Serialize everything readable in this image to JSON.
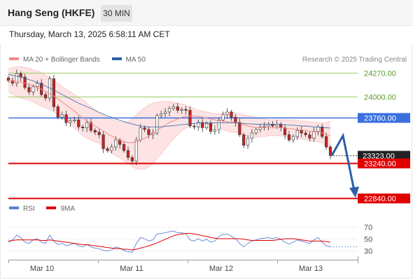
{
  "header": {
    "title": "Hang Seng (HKFE)",
    "timeframe": "30 MIN",
    "datetime": "Thursday, March 13, 2025 6:58:11 AM CET"
  },
  "legend": {
    "items": [
      {
        "label": "MA 20 + Bollinger Bands",
        "color": "#f08b8b"
      },
      {
        "label": "MA 50",
        "color": "#2c5fa8"
      }
    ],
    "credit": "Research © 2025 Trading Central"
  },
  "rsi_legend": {
    "items": [
      {
        "label": "RSI",
        "color": "#5c7fd6"
      },
      {
        "label": "9MA",
        "color": "#e00000"
      }
    ]
  },
  "colors": {
    "green_level": "#9acd62",
    "blue_level": "#3a6fe0",
    "red_level": "#e00000",
    "arrow": "#2c5fa8",
    "bb_fill": "#fde3e3",
    "candle_up": "#ffffff",
    "candle_down": "#cc2222"
  },
  "chart_data": [
    {
      "type": "candlestick",
      "title": "",
      "x_ticks": [
        "Mar 10",
        "Mar 11",
        "Mar 12",
        "Mar 13"
      ],
      "ylim": [
        22780,
        24300
      ],
      "levels": [
        {
          "label": "24270.00",
          "value": 24270,
          "kind": "resistance",
          "color": "#9acd62"
        },
        {
          "label": "24000.00",
          "value": 24000,
          "kind": "resistance",
          "color": "#9acd62"
        },
        {
          "label": "23760.00",
          "value": 23760,
          "kind": "pivot",
          "color": "#3a6fe0"
        },
        {
          "label": "23323.00",
          "value": 23323,
          "kind": "last",
          "color": "#222222"
        },
        {
          "label": "23240.00",
          "value": 23240,
          "kind": "support",
          "color": "#e00000"
        },
        {
          "label": "22840.00",
          "value": 22840,
          "kind": "support",
          "color": "#e00000"
        }
      ],
      "closes": [
        24180,
        24150,
        24260,
        24220,
        24100,
        24050,
        24110,
        24150,
        24020,
        23980,
        24200,
        23880,
        23760,
        23790,
        23700,
        23720,
        23730,
        23650,
        23640,
        23700,
        23610,
        23590,
        23560,
        23400,
        23380,
        23420,
        23500,
        23450,
        23380,
        23300,
        23260,
        23500,
        23640,
        23620,
        23560,
        23580,
        23780,
        23800,
        23820,
        23860,
        23880,
        23840,
        23850,
        23840,
        23660,
        23650,
        23700,
        23640,
        23690,
        23600,
        23620,
        23730,
        23790,
        23820,
        23760,
        23700,
        23560,
        23440,
        23520,
        23580,
        23620,
        23650,
        23660,
        23680,
        23660,
        23680,
        23640,
        23560,
        23500,
        23540,
        23610,
        23580,
        23560,
        23520,
        23600,
        23650,
        23540,
        23420,
        23323
      ],
      "ma20": [
        24180,
        24175,
        24170,
        24160,
        24150,
        24135,
        24120,
        24100,
        24080,
        24055,
        24030,
        24000,
        23970,
        23935,
        23900,
        23865,
        23830,
        23790,
        23755,
        23720,
        23690,
        23660,
        23630,
        23600,
        23570,
        23545,
        23520,
        23500,
        23480,
        23470,
        23470,
        23480,
        23500,
        23520,
        23545,
        23575,
        23610,
        23640,
        23670,
        23700,
        23720,
        23740,
        23760,
        23770,
        23775,
        23775,
        23770,
        23760,
        23750,
        23740,
        23730,
        23720,
        23715,
        23710,
        23705,
        23700,
        23690,
        23675,
        23660,
        23650,
        23645,
        23645,
        23640,
        23640,
        23640,
        23640,
        23640,
        23635,
        23630,
        23625,
        23620,
        23615,
        23610,
        23600,
        23595,
        23590,
        23580,
        23565,
        23545
      ],
      "bb_upper": [
        24310,
        24330,
        24340,
        24340,
        24330,
        24320,
        24300,
        24290,
        24270,
        24240,
        24210,
        24180,
        24150,
        24110,
        24080,
        24050,
        24020,
        23990,
        23960,
        23920,
        23880,
        23840,
        23800,
        23780,
        23760,
        23740,
        23720,
        23700,
        23700,
        23710,
        23740,
        23790,
        23830,
        23870,
        23900,
        23920,
        23930,
        23940,
        23940,
        23940,
        23930,
        23920,
        23910,
        23900,
        23880,
        23860,
        23840,
        23830,
        23820,
        23810,
        23800,
        23800,
        23810,
        23820,
        23820,
        23810,
        23800,
        23790,
        23780,
        23770,
        23760,
        23750,
        23740,
        23730,
        23730,
        23730,
        23730,
        23730,
        23730,
        23730,
        23720,
        23720,
        23715,
        23710,
        23705,
        23700,
        23695,
        23700,
        23710
      ],
      "bb_lower": [
        24050,
        24020,
        24000,
        23980,
        23970,
        23950,
        23940,
        23910,
        23890,
        23870,
        23850,
        23820,
        23790,
        23760,
        23720,
        23680,
        23640,
        23590,
        23550,
        23520,
        23500,
        23480,
        23460,
        23420,
        23380,
        23350,
        23320,
        23300,
        23260,
        23230,
        23200,
        23170,
        23170,
        23170,
        23190,
        23230,
        23290,
        23340,
        23400,
        23460,
        23510,
        23560,
        23610,
        23640,
        23670,
        23690,
        23700,
        23690,
        23680,
        23670,
        23660,
        23640,
        23620,
        23600,
        23590,
        23590,
        23580,
        23560,
        23540,
        23530,
        23530,
        23540,
        23540,
        23550,
        23550,
        23550,
        23550,
        23540,
        23530,
        23520,
        23520,
        23510,
        23505,
        23490,
        23485,
        23480,
        23465,
        23430,
        23380
      ],
      "ma50": [
        24250,
        24240,
        24230,
        24220,
        24205,
        24190,
        24175,
        24155,
        24135,
        24115,
        24095,
        24070,
        24045,
        24020,
        23995,
        23970,
        23945,
        23920,
        23900,
        23880,
        23860,
        23840,
        23815,
        23795,
        23775,
        23760,
        23740,
        23725,
        23710,
        23695,
        23685,
        23670,
        23660,
        23655,
        23650,
        23650,
        23650,
        23650,
        23655,
        23660,
        23665,
        23670,
        23675,
        23680,
        23685,
        23690,
        23695,
        23695,
        23695,
        23695,
        23695,
        23695,
        23695,
        23695,
        23695,
        23695,
        23690,
        23690,
        23685,
        23685,
        23680,
        23680,
        23680,
        23680,
        23680,
        23680,
        23680,
        23675,
        23670,
        23670,
        23665,
        23660,
        23660,
        23655,
        23650,
        23650,
        23645,
        23640,
        23635
      ],
      "forecast": {
        "from": 23323,
        "peak": 23550,
        "target": 22840
      }
    },
    {
      "type": "line",
      "title": "RSI",
      "ylim": [
        25,
        75
      ],
      "y_ticks": [
        70,
        50,
        30
      ],
      "series": [
        {
          "name": "RSI",
          "values": [
            44,
            48,
            56,
            52,
            44,
            42,
            48,
            50,
            44,
            42,
            56,
            46,
            40,
            42,
            38,
            40,
            42,
            38,
            36,
            40,
            36,
            34,
            33,
            30,
            29,
            31,
            36,
            34,
            30,
            28,
            27,
            42,
            52,
            50,
            46,
            48,
            58,
            59,
            60,
            62,
            63,
            60,
            60,
            58,
            48,
            46,
            50,
            46,
            49,
            44,
            46,
            54,
            57,
            58,
            54,
            50,
            42,
            36,
            42,
            46,
            48,
            50,
            51,
            52,
            50,
            52,
            49,
            44,
            41,
            44,
            48,
            46,
            44,
            42,
            48,
            52,
            44,
            38,
            36
          ]
        },
        {
          "name": "9MA",
          "values": [
            46,
            47,
            48,
            48,
            48,
            48,
            48,
            48,
            47,
            47,
            48,
            47,
            46,
            45,
            44,
            43,
            42,
            41,
            40,
            40,
            39,
            38,
            37,
            36,
            35,
            34,
            33,
            33,
            32,
            32,
            31,
            32,
            34,
            36,
            38,
            40,
            43,
            46,
            49,
            52,
            55,
            57,
            58,
            59,
            59,
            58,
            57,
            55,
            54,
            52,
            51,
            50,
            50,
            50,
            50,
            50,
            50,
            49,
            48,
            47,
            47,
            47,
            47,
            47,
            47,
            48,
            49,
            50,
            50,
            50,
            49,
            48,
            47,
            46,
            46,
            46,
            46,
            45,
            44
          ]
        }
      ]
    }
  ]
}
